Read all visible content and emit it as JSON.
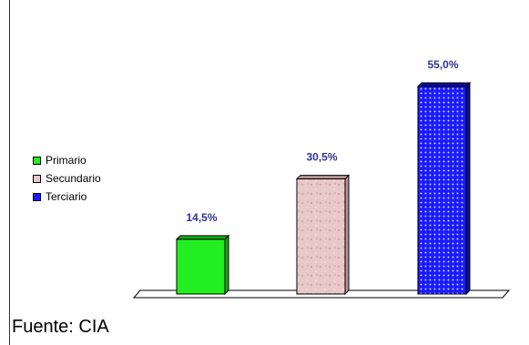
{
  "chart_data": {
    "type": "bar",
    "categories": [
      "Primario",
      "Secundario",
      "Terciario"
    ],
    "values": [
      14.5,
      30.5,
      55.0
    ],
    "value_labels": [
      "14,5%",
      "30,5%",
      "55,0%"
    ],
    "colors": [
      "#22ee22",
      "#e8c8c8",
      "#1a1aff"
    ],
    "legend": {
      "placement": "left",
      "entries": [
        "Primario",
        "Secundario",
        "Terciario"
      ]
    },
    "ylim": [
      0,
      55
    ],
    "grid": false,
    "title": "",
    "xlabel": "",
    "ylabel": ""
  },
  "source": "Fuente: CIA"
}
